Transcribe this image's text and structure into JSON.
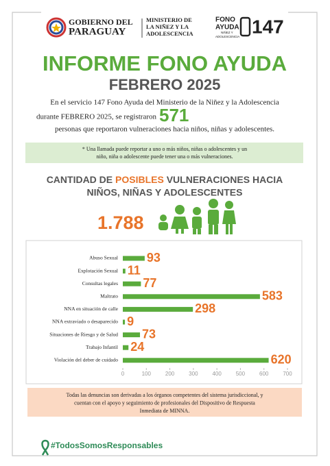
{
  "header": {
    "gov_line1": "GOBIERNO DEL",
    "gov_line2": "PARAGUAY",
    "ministry": [
      "MINISTERIO DE",
      "LA NIÑEZ Y LA",
      "ADOLESCENCIA"
    ],
    "fono": [
      "FONO",
      "AYUDA",
      "NIÑEZ Y",
      "ADOLESCENCIA"
    ],
    "fono_number": "147"
  },
  "title": "INFORME FONO AYUDA",
  "period": "FEBRERO 2025",
  "intro": {
    "line1": "En el servicio 147 Fono Ayuda del Ministerio de la Niñez y la Adolescencia",
    "line2": "durante FEBRERO 2025, se registraron",
    "count": "571",
    "line3": "personas que reportaron vulneraciones hacia niños, niñas y adolescentes."
  },
  "note": [
    "* Una llamada puede reportar a uno o más niños, niñas o adolescentes y un",
    "niño, niña o adolescente puede tener una o más vulneraciones."
  ],
  "section": {
    "part1": "CANTIDAD DE ",
    "part2": "POSIBLES",
    "part3": " VULNERACIONES HACIA",
    "line2": "NIÑOS, NIÑAS Y ADOLESCENTES"
  },
  "total": "1.788",
  "chart_data": {
    "type": "hbar",
    "categories": [
      "Abuso Sexual",
      "Explotación Sexual",
      "Consultas legales",
      "Maltrato",
      "NNA en situación de calle",
      "NNA extraviado o desaparecido",
      "Situaciones de Riesgo y de Salud",
      "Trabajo Infantil",
      "Violación del deber de cuidado"
    ],
    "values": [
      93,
      11,
      77,
      583,
      298,
      9,
      73,
      24,
      620
    ],
    "color": "#5aab3c",
    "label_color": "#e8742a",
    "xlim": [
      0,
      700
    ],
    "xticks": [
      0,
      100,
      200,
      300,
      400,
      500,
      600,
      700
    ]
  },
  "footer": [
    "Todas las denuncias son derivadas a los órganos competentes del sistema jurisdiccional, y",
    "cuentan con el apoyo y seguimiento de profesionales del Dispositivo de Respuesta",
    "Inmediata de MINNA."
  ],
  "hashtag": "#TodosSomosResponsables"
}
